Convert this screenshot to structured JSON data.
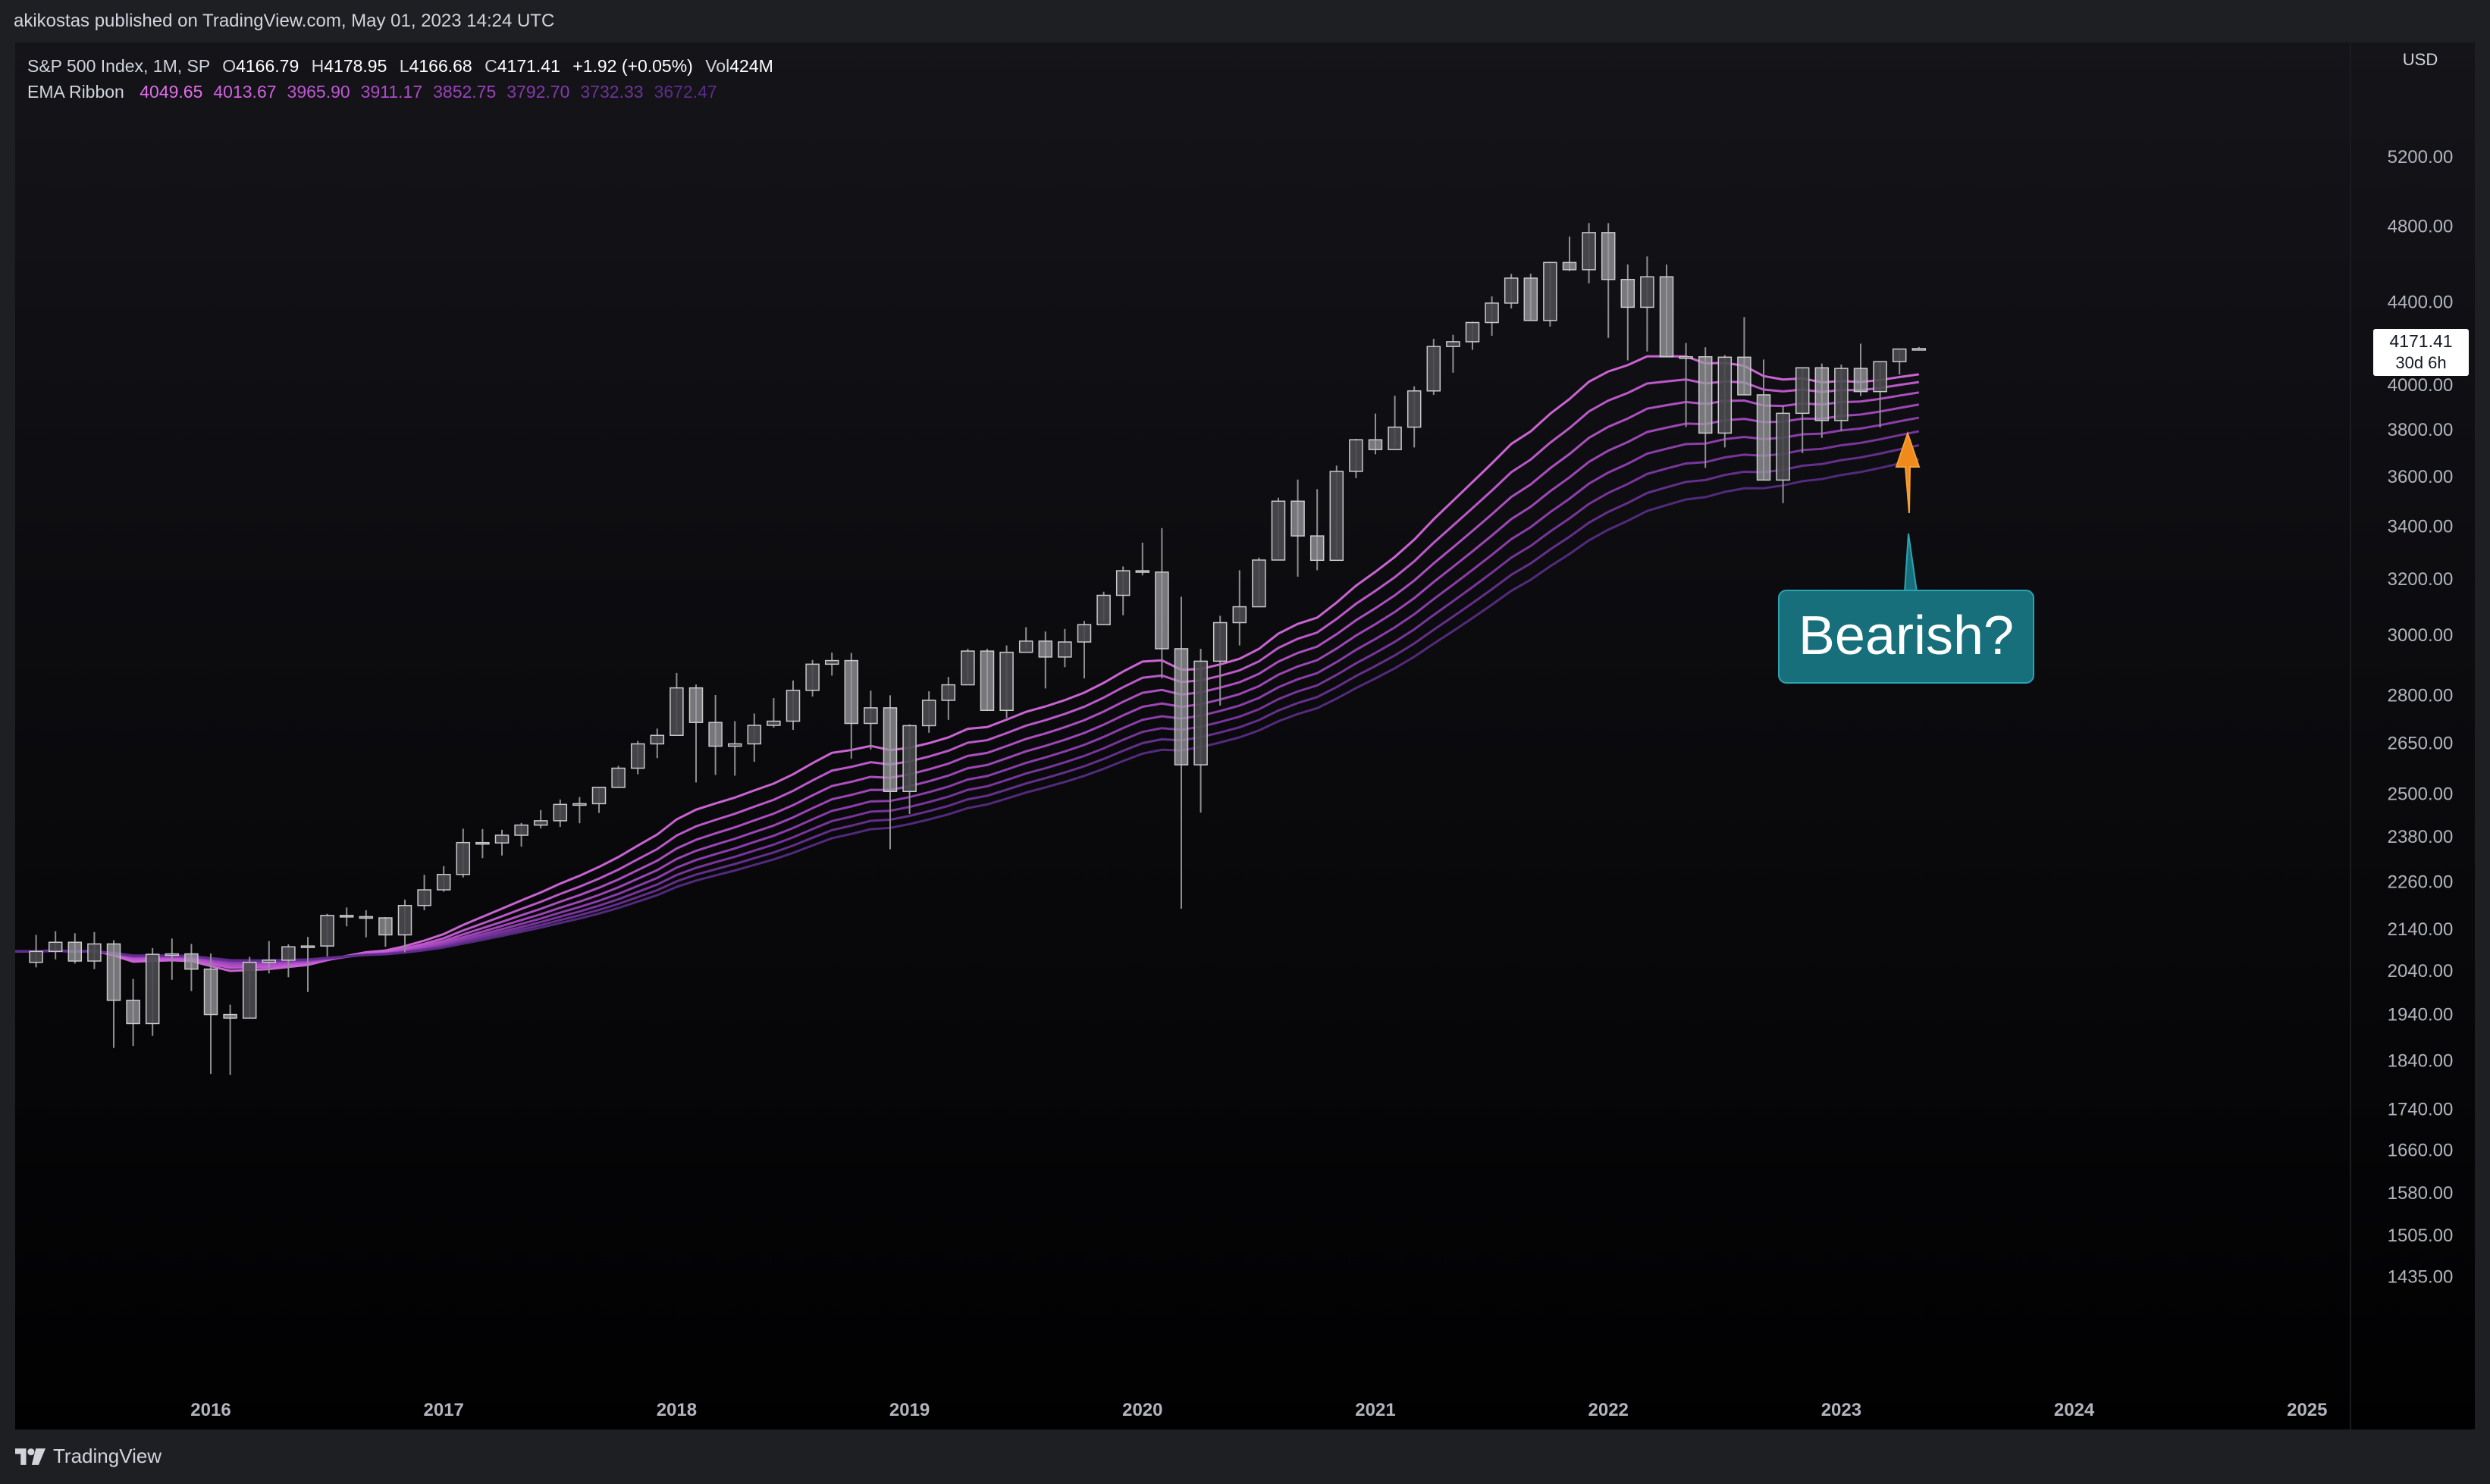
{
  "header": {
    "publisher": "akikostas published on TradingView.com, May 01, 2023 14:24 UTC"
  },
  "legend": {
    "symbol": "S&P 500 Index, 1M, SP",
    "o_label": "O",
    "o": "4166.79",
    "h_label": "H",
    "h": "4178.95",
    "l_label": "L",
    "l": "4166.68",
    "c_label": "C",
    "c": "4171.41",
    "change": "+1.92 (+0.05%)",
    "vol_label": "Vol",
    "vol": "424M",
    "ema_label": "EMA Ribbon",
    "ema_values": [
      "4049.65",
      "4013.67",
      "3965.90",
      "3911.17",
      "3852.75",
      "3792.70",
      "3732.33",
      "3672.47"
    ],
    "ema_colors": [
      "#e06ee8",
      "#cf62df",
      "#bf57d4",
      "#ad4cc8",
      "#9a42bb",
      "#853aab",
      "#6f3399",
      "#5b2d88"
    ]
  },
  "price_axis": {
    "currency": "USD",
    "ticks": [
      "5200.00",
      "4800.00",
      "4400.00",
      "4000.00",
      "3800.00",
      "3600.00",
      "3400.00",
      "3200.00",
      "3000.00",
      "2800.00",
      "2650.00",
      "2500.00",
      "2380.00",
      "2260.00",
      "2140.00",
      "2040.00",
      "1940.00",
      "1840.00",
      "1740.00",
      "1660.00",
      "1580.00",
      "1505.00",
      "1435.00"
    ],
    "last_price": "4171.41",
    "countdown": "30d 6h"
  },
  "time_axis": {
    "labels": [
      "2016",
      "2017",
      "2018",
      "2019",
      "2020",
      "2021",
      "2022",
      "2023",
      "2024",
      "2025"
    ]
  },
  "annotation": {
    "text": "Bearish?",
    "arrow_color": "#f08a1a",
    "callout_color": "#166f7a"
  },
  "footer": {
    "brand": "TradingView"
  },
  "colors": {
    "background": "#050507",
    "candle_fill": "#8a8a8f",
    "candle_edge": "#c9c9cc",
    "wick": "#8f8f93"
  },
  "chart_data": {
    "type": "candlestick",
    "title": "S&P 500 Index, 1M, SP",
    "log_scale": true,
    "ylim": [
      1435,
      5400
    ],
    "xlim": [
      "2015-04",
      "2025-06"
    ],
    "grid": false,
    "series": [
      {
        "name": "S&P 500 Index",
        "start": "2015-04",
        "interval": "1M",
        "ohlc": [
          [
            2060,
            2126,
            2048,
            2086
          ],
          [
            2086,
            2135,
            2067,
            2108
          ],
          [
            2108,
            2130,
            2057,
            2063
          ],
          [
            2063,
            2133,
            2044,
            2104
          ],
          [
            2104,
            2113,
            1867,
            1972
          ],
          [
            1972,
            2021,
            1871,
            1920
          ],
          [
            1920,
            2094,
            1893,
            2079
          ],
          [
            2079,
            2117,
            2019,
            2080
          ],
          [
            2080,
            2104,
            1993,
            2044
          ],
          [
            2044,
            2081,
            1812,
            1940
          ],
          [
            1940,
            1962,
            1810,
            1932
          ],
          [
            1932,
            2073,
            1932,
            2060
          ],
          [
            2060,
            2111,
            2034,
            2065
          ],
          [
            2065,
            2103,
            2025,
            2097
          ],
          [
            2097,
            2121,
            1991,
            2099
          ],
          [
            2099,
            2178,
            2074,
            2174
          ],
          [
            2174,
            2194,
            2147,
            2171
          ],
          [
            2171,
            2187,
            2120,
            2168
          ],
          [
            2168,
            2170,
            2097,
            2126
          ],
          [
            2126,
            2214,
            2084,
            2199
          ],
          [
            2199,
            2278,
            2187,
            2239
          ],
          [
            2239,
            2301,
            2234,
            2279
          ],
          [
            2279,
            2402,
            2271,
            2364
          ],
          [
            2364,
            2401,
            2322,
            2363
          ],
          [
            2363,
            2399,
            2329,
            2384
          ],
          [
            2384,
            2418,
            2353,
            2412
          ],
          [
            2412,
            2454,
            2403,
            2424
          ],
          [
            2424,
            2484,
            2407,
            2470
          ],
          [
            2470,
            2491,
            2417,
            2472
          ],
          [
            2472,
            2519,
            2446,
            2519
          ],
          [
            2519,
            2582,
            2520,
            2575
          ],
          [
            2575,
            2657,
            2557,
            2648
          ],
          [
            2648,
            2695,
            2605,
            2674
          ],
          [
            2674,
            2873,
            2682,
            2824
          ],
          [
            2824,
            2835,
            2533,
            2714
          ],
          [
            2714,
            2801,
            2555,
            2641
          ],
          [
            2641,
            2718,
            2553,
            2648
          ],
          [
            2648,
            2742,
            2594,
            2705
          ],
          [
            2705,
            2791,
            2698,
            2718
          ],
          [
            2718,
            2848,
            2691,
            2816
          ],
          [
            2816,
            2916,
            2796,
            2902
          ],
          [
            2902,
            2941,
            2864,
            2914
          ],
          [
            2914,
            2940,
            2603,
            2711
          ],
          [
            2711,
            2815,
            2631,
            2760
          ],
          [
            2760,
            2800,
            2346,
            2507
          ],
          [
            2507,
            2708,
            2443,
            2704
          ],
          [
            2704,
            2813,
            2682,
            2784
          ],
          [
            2784,
            2860,
            2722,
            2834
          ],
          [
            2834,
            2954,
            2848,
            2946
          ],
          [
            2946,
            2954,
            2750,
            2752
          ],
          [
            2752,
            2965,
            2728,
            2942
          ],
          [
            2942,
            3028,
            2952,
            2980
          ],
          [
            2980,
            3013,
            2822,
            2926
          ],
          [
            2926,
            3022,
            2892,
            2977
          ],
          [
            2977,
            3050,
            2855,
            3037
          ],
          [
            3037,
            3154,
            3050,
            3141
          ],
          [
            3141,
            3247,
            3070,
            3231
          ],
          [
            3231,
            3337,
            3214,
            3226
          ],
          [
            3226,
            3393,
            2855,
            2954
          ],
          [
            2954,
            3136,
            2191,
            2585
          ],
          [
            2585,
            2954,
            2447,
            2912
          ],
          [
            2912,
            3068,
            2767,
            3044
          ],
          [
            3044,
            3233,
            2965,
            3100
          ],
          [
            3100,
            3280,
            3101,
            3271
          ],
          [
            3271,
            3514,
            3280,
            3500
          ],
          [
            3500,
            3588,
            3209,
            3363
          ],
          [
            3363,
            3549,
            3233,
            3270
          ],
          [
            3270,
            3646,
            3279,
            3622
          ],
          [
            3622,
            3760,
            3594,
            3756
          ],
          [
            3756,
            3871,
            3694,
            3714
          ],
          [
            3714,
            3951,
            3725,
            3811
          ],
          [
            3811,
            3994,
            3723,
            3973
          ],
          [
            3973,
            4218,
            3955,
            4181
          ],
          [
            4181,
            4238,
            4057,
            4204
          ],
          [
            4204,
            4302,
            4165,
            4298
          ],
          [
            4298,
            4429,
            4233,
            4395
          ],
          [
            4395,
            4545,
            4368,
            4523
          ],
          [
            4523,
            4546,
            4305,
            4308
          ],
          [
            4308,
            4609,
            4278,
            4605
          ],
          [
            4605,
            4744,
            4560,
            4567
          ],
          [
            4567,
            4819,
            4496,
            4766
          ],
          [
            4766,
            4818,
            4223,
            4516
          ],
          [
            4516,
            4595,
            4115,
            4374
          ],
          [
            4374,
            4637,
            4157,
            4530
          ],
          [
            4530,
            4594,
            4129,
            4132
          ],
          [
            4132,
            4198,
            3811,
            4132
          ],
          [
            4132,
            4177,
            3637,
            3785
          ],
          [
            3785,
            4140,
            3723,
            4130
          ],
          [
            4130,
            4325,
            3955,
            3955
          ],
          [
            3955,
            4119,
            3585,
            3586
          ],
          [
            3586,
            3905,
            3492,
            3872
          ],
          [
            3872,
            4080,
            3699,
            4080
          ],
          [
            4080,
            4100,
            3764,
            3840
          ],
          [
            3840,
            4095,
            3794,
            4077
          ],
          [
            4077,
            4195,
            3950,
            3970
          ],
          [
            3970,
            4110,
            3809,
            4109
          ],
          [
            4109,
            4170,
            4048,
            4169
          ],
          [
            4167,
            4179,
            4167,
            4171
          ]
        ]
      }
    ],
    "ema_ribbon": {
      "name": "EMA Ribbon",
      "last_values": [
        4049.65,
        4013.67,
        3965.9,
        3911.17,
        3852.75,
        3792.7,
        3732.33,
        3672.47
      ]
    }
  }
}
